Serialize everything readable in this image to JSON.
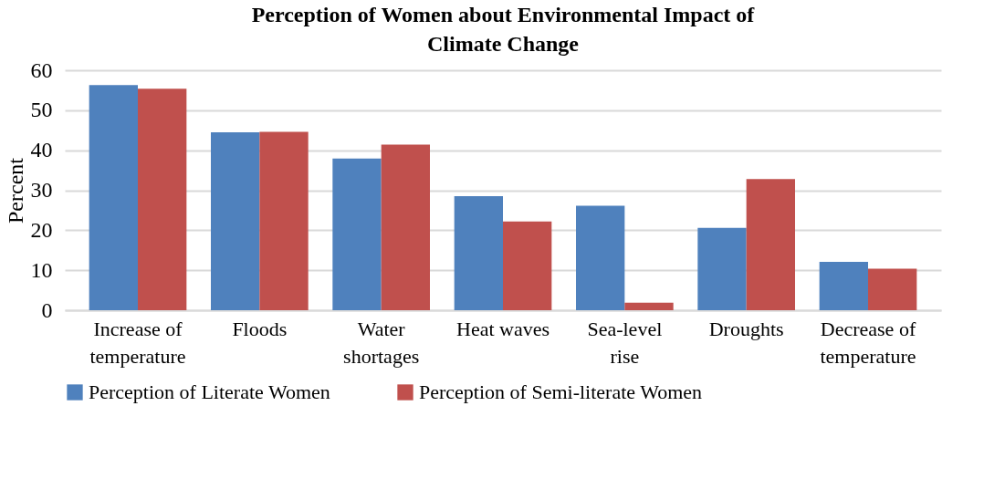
{
  "chart_data": {
    "type": "bar",
    "title": "Perception of Women about Environmental Impact of Climate Change",
    "ylabel": "Percent",
    "categories": [
      "Increase of temperature",
      "Floods",
      "Water shortages",
      "Heat waves",
      "Sea-level rise",
      "Droughts",
      "Decrease of temperature"
    ],
    "series": [
      {
        "name": "Perception of Literate Women",
        "color": "#4f81bd",
        "values": [
          56.3,
          44.5,
          37.9,
          28.5,
          26.1,
          20.6,
          12.1
        ]
      },
      {
        "name": "Perception of Semi-literate Women",
        "color": "#c0504d",
        "values": [
          55.4,
          44.6,
          41.4,
          22.2,
          1.9,
          32.8,
          10.4
        ]
      }
    ],
    "ylim": [
      0,
      60
    ],
    "yticks": [
      0,
      10,
      20,
      30,
      40,
      50,
      60
    ],
    "grid": "y",
    "legend": "bottom"
  }
}
